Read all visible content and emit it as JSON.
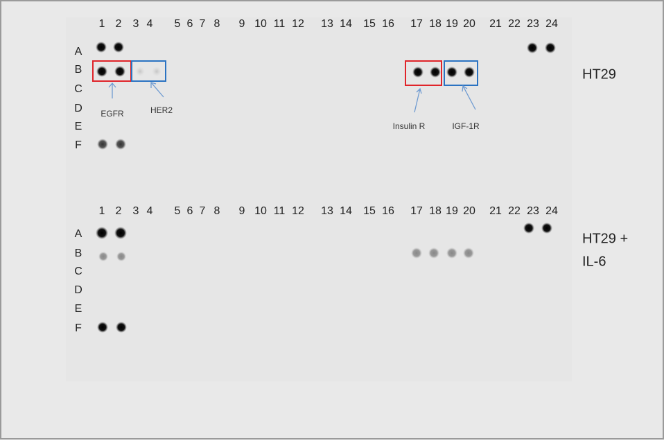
{
  "panels": [
    {
      "columns": [
        "1",
        "2",
        "3",
        "4",
        "5",
        "6",
        "7",
        "8",
        "9",
        "10",
        "11",
        "12",
        "13",
        "14",
        "15",
        "16",
        "17",
        "18",
        "19",
        "20",
        "21",
        "22",
        "23",
        "24"
      ],
      "rows": [
        "A",
        "B",
        "C",
        "D",
        "E",
        "F"
      ],
      "sample": [
        "HT29"
      ],
      "annotations": [
        "EGFR",
        "HER2",
        "Insulin R",
        "IGF-1R"
      ]
    },
    {
      "columns": [
        "1",
        "2",
        "3",
        "4",
        "5",
        "6",
        "7",
        "8",
        "9",
        "10",
        "11",
        "12",
        "13",
        "14",
        "15",
        "16",
        "17",
        "18",
        "19",
        "20",
        "21",
        "22",
        "23",
        "24"
      ],
      "rows": [
        "A",
        "B",
        "C",
        "D",
        "E",
        "F"
      ],
      "sample": [
        "HT29 +",
        "IL-6"
      ]
    }
  ]
}
